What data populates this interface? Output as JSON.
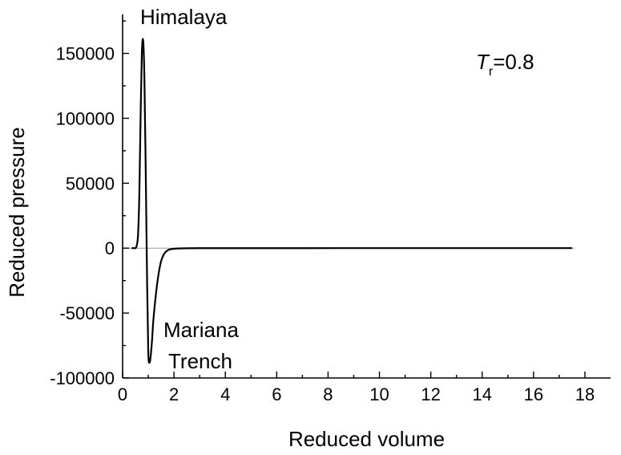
{
  "chart_data": {
    "type": "line",
    "xlabel": "Reduced volume",
    "ylabel": "Reduced pressure",
    "xlim": [
      0,
      19
    ],
    "ylim": [
      -100000,
      180000
    ],
    "xticks": [
      0,
      2,
      4,
      6,
      8,
      10,
      12,
      14,
      16,
      18
    ],
    "xtick_labels": [
      "0",
      "2",
      "4",
      "6",
      "8",
      "10",
      "12",
      "14",
      "16",
      "18"
    ],
    "yticks": [
      -100000,
      -50000,
      0,
      50000,
      100000,
      150000
    ],
    "ytick_labels": [
      "-100000",
      "-50000",
      "0",
      "50000",
      "100000",
      "150000"
    ],
    "reference_line_y": 0,
    "grid": false,
    "annotations": {
      "peak": "Himalaya",
      "trough_line1": "Mariana",
      "trough_line2": "Trench",
      "temp_symbol": "T",
      "temp_subscript": "r",
      "temp_value": "=0.8"
    },
    "series": [
      {
        "x": [
          0.35,
          0.45,
          0.5,
          0.55,
          0.6,
          0.65,
          0.7,
          0.75,
          0.8,
          0.85,
          0.9,
          0.95,
          1.0,
          1.05,
          1.1,
          1.15,
          1.2,
          1.3,
          1.4,
          1.5,
          1.6,
          1.7,
          1.8,
          2.0,
          2.2,
          2.5,
          3.0,
          4.0,
          6.0,
          10.0,
          14.0,
          17.5
        ],
        "y": [
          0,
          0,
          0,
          2000,
          10000,
          40000,
          100000,
          150000,
          160000,
          130000,
          60000,
          -20000,
          -80000,
          -88000,
          -82000,
          -70000,
          -55000,
          -35000,
          -20000,
          -10000,
          -5000,
          -2500,
          -1200,
          -500,
          -250,
          -100,
          -30,
          -10,
          -2,
          0,
          0,
          0
        ]
      }
    ]
  }
}
